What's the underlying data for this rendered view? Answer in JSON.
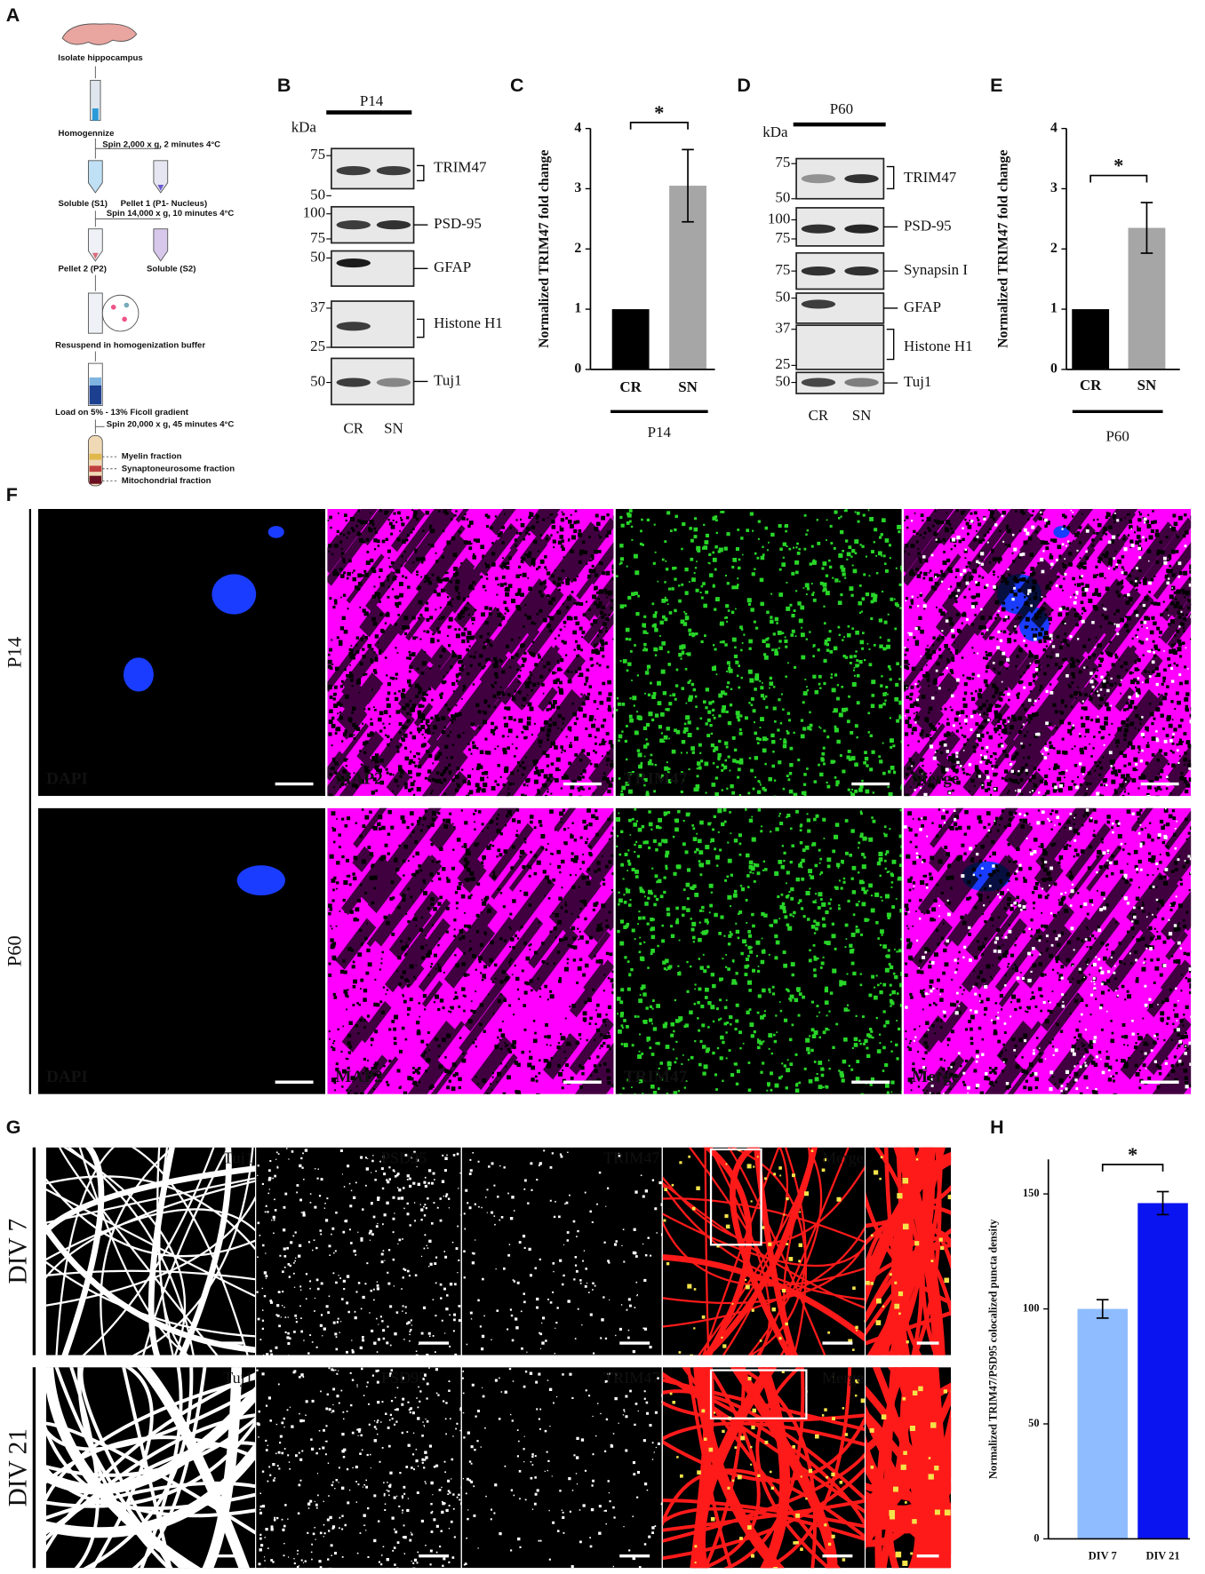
{
  "panel_labels": [
    "A",
    "B",
    "C",
    "D",
    "E",
    "F",
    "G",
    "H"
  ],
  "flowchart": {
    "steps": [
      "Isolate hippocampus",
      "Homogennize",
      "Spin 2,000 x g, 2 minutes 4°C",
      "Soluble (S1)",
      "Pellet 1 (P1- Nucleus)",
      "Spin 14,000 x g, 10 minutes 4°C",
      "Pellet 2 (P2)",
      "Soluble (S2)",
      "Resuspend in homogenization buffer",
      "Load on 5% - 13% Ficoll gradient",
      "Spin 20,000 x g, 45 minutes 4°C",
      "Myelin fraction",
      "Synaptoneurosome fraction",
      "Mitochondrial fraction"
    ]
  },
  "blots": {
    "B": {
      "timepoint": "P14",
      "unit": "kDa",
      "markers": [
        75,
        50,
        100,
        75,
        50,
        37,
        25,
        50
      ],
      "proteins": [
        "TRIM47",
        "PSD-95",
        "GFAP",
        "Histone H1",
        "Tuj1"
      ],
      "lanes": [
        "CR",
        "SN"
      ]
    },
    "D": {
      "timepoint": "P60",
      "unit": "kDa",
      "markers": [
        75,
        50,
        100,
        75,
        75,
        50,
        37,
        25,
        50
      ],
      "proteins": [
        "TRIM47",
        "PSD-95",
        "Synapsin I",
        "GFAP",
        "Histone H1",
        "Tuj1"
      ],
      "lanes": [
        "CR",
        "SN"
      ]
    }
  },
  "micrographs": {
    "F": {
      "rows": [
        "P14",
        "P60"
      ],
      "channels": [
        "DAPI",
        "MAP2",
        "TRIM47",
        "Merge"
      ]
    },
    "G": {
      "rows": [
        "DIV 7",
        "DIV 21"
      ],
      "channels": [
        "Tuj1",
        "PSD95",
        "TRIM47",
        "Merge"
      ]
    }
  },
  "chart_data": [
    {
      "type": "bar",
      "categories": [
        "CR",
        "SN"
      ],
      "values": [
        1,
        3.05
      ],
      "errors": [
        null,
        0.6
      ],
      "colors": [
        "#000000",
        "#a6a6a6"
      ],
      "ylim": [
        0,
        4
      ],
      "yticks": [
        0,
        1,
        2,
        3,
        4
      ],
      "ylabel": "Normalized TRIM47 fold change",
      "significance": "*",
      "group_label": "P14"
    },
    {
      "type": "bar",
      "categories": [
        "CR",
        "SN"
      ],
      "values": [
        1,
        2.35
      ],
      "errors": [
        null,
        0.42
      ],
      "colors": [
        "#000000",
        "#a6a6a6"
      ],
      "ylim": [
        0,
        4
      ],
      "yticks": [
        0,
        1,
        2,
        3,
        4
      ],
      "ylabel": "Normalized TRIM47 fold change",
      "significance": "*",
      "group_label": "P60"
    },
    {
      "type": "bar",
      "categories": [
        "DIV 7",
        "DIV 21"
      ],
      "values": [
        100,
        146
      ],
      "errors": [
        4,
        5
      ],
      "colors": [
        "#8fbcff",
        "#0a14f0"
      ],
      "ylim": [
        0,
        165
      ],
      "yticks": [
        0,
        50,
        100,
        150
      ],
      "ylabel": "Normalized TRIM47/PSD95 colocalized puncta density",
      "significance": "*"
    }
  ]
}
